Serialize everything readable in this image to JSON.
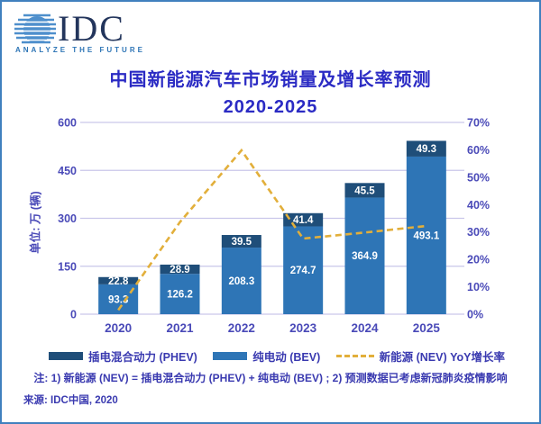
{
  "logo": {
    "name": "IDC",
    "tagline": "ANALYZE THE FUTURE",
    "mark_color": "#4E8FCC",
    "word_color": "#23355C"
  },
  "title": {
    "line1": "中国新能源汽车市场销量及增长率预测",
    "line2": "2020-2025"
  },
  "chart_data": {
    "type": "bar",
    "subtype": "stacked-bars-with-line",
    "categories": [
      "2020",
      "2021",
      "2022",
      "2023",
      "2024",
      "2025"
    ],
    "series": [
      {
        "name": "纯电动 (BEV)",
        "kind": "bar",
        "color": "#2E75B6",
        "values": [
          93.3,
          126.2,
          208.3,
          274.7,
          364.9,
          493.1
        ]
      },
      {
        "name": "插电混合动力 (PHEV)",
        "kind": "bar",
        "color": "#1F4E79",
        "values": [
          22.8,
          28.9,
          39.5,
          41.4,
          45.5,
          49.3
        ]
      },
      {
        "name": "新能源 (NEV) YoY增长率",
        "kind": "line",
        "color": "#E2AF3B",
        "values_pct": [
          1.5,
          33.6,
          59.8,
          27.6,
          29.8,
          32.2
        ]
      }
    ],
    "title": "中国新能源汽车市场销量及增长率预测 2020-2025",
    "xlabel": "",
    "ylabel": "单位: 万 (辆)",
    "left_axis": {
      "ticks": [
        0,
        150,
        300,
        450,
        600
      ],
      "max": 600
    },
    "right_axis": {
      "ticks": [
        "0%",
        "10%",
        "20%",
        "30%",
        "40%",
        "50%",
        "60%",
        "70%"
      ],
      "max_pct": 70
    },
    "grid": true,
    "gridline_color": "#C9C6EA",
    "tick_label_color": "#4A4AB8",
    "bar_label_color": "#FFFFFF",
    "legend_position": "bottom",
    "stacked": true
  },
  "legend": {
    "phev_label": "插电混合动力 (PHEV)",
    "bev_label": "纯电动 (BEV)",
    "yoy_label": "新能源 (NEV) YoY增长率"
  },
  "note": "注: 1) 新能源 (NEV) = 插电混合动力 (PHEV) + 纯电动 (BEV) ; 2) 预测数据已考虑新冠肺炎疫情影响",
  "source": "来源: IDC中国, 2020"
}
